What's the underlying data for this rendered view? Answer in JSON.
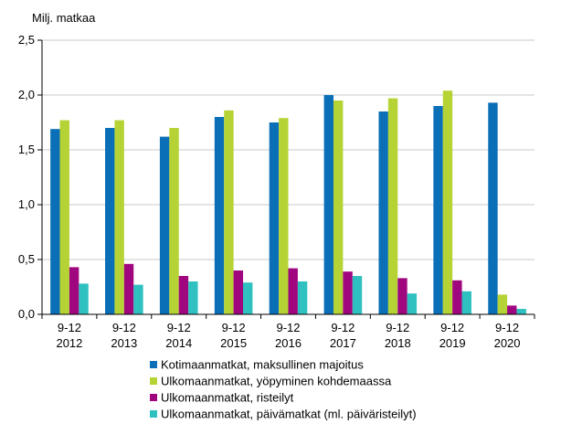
{
  "chart_data": {
    "type": "bar",
    "unit_label": "Milj. matkaa",
    "categories": [
      [
        "9-12",
        "2012"
      ],
      [
        "9-12",
        "2013"
      ],
      [
        "9-12",
        "2014"
      ],
      [
        "9-12",
        "2015"
      ],
      [
        "9-12",
        "2016"
      ],
      [
        "9-12",
        "2017"
      ],
      [
        "9-12",
        "2018"
      ],
      [
        "9-12",
        "2019"
      ],
      [
        "9-12",
        "2020"
      ]
    ],
    "ylim": [
      0,
      2.5
    ],
    "yticks": [
      "0,0",
      "0,5",
      "1,0",
      "1,5",
      "2,0",
      "2,5"
    ],
    "grid": true,
    "legend_position": "bottom",
    "series": [
      {
        "name": "Kotimaanmatkat, maksullinen majoitus",
        "color": "#0a6fb6",
        "values": [
          1.69,
          1.7,
          1.62,
          1.8,
          1.75,
          2.0,
          1.85,
          1.9,
          1.93
        ]
      },
      {
        "name": "Ulkomaanmatkat, yöpyminen kohdemaassa",
        "color": "#b5d334",
        "values": [
          1.77,
          1.77,
          1.7,
          1.86,
          1.79,
          1.95,
          1.97,
          2.04,
          0.18
        ]
      },
      {
        "name": "Ulkomaanmatkat, risteilyt",
        "color": "#a0067e",
        "values": [
          0.43,
          0.46,
          0.35,
          0.4,
          0.42,
          0.39,
          0.33,
          0.31,
          0.08
        ]
      },
      {
        "name": "Ulkomaanmatkat, päivämatkat (ml. päiväristeilyt)",
        "color": "#2fc0c0",
        "values": [
          0.28,
          0.27,
          0.3,
          0.29,
          0.3,
          0.35,
          0.19,
          0.21,
          0.05
        ]
      }
    ]
  }
}
